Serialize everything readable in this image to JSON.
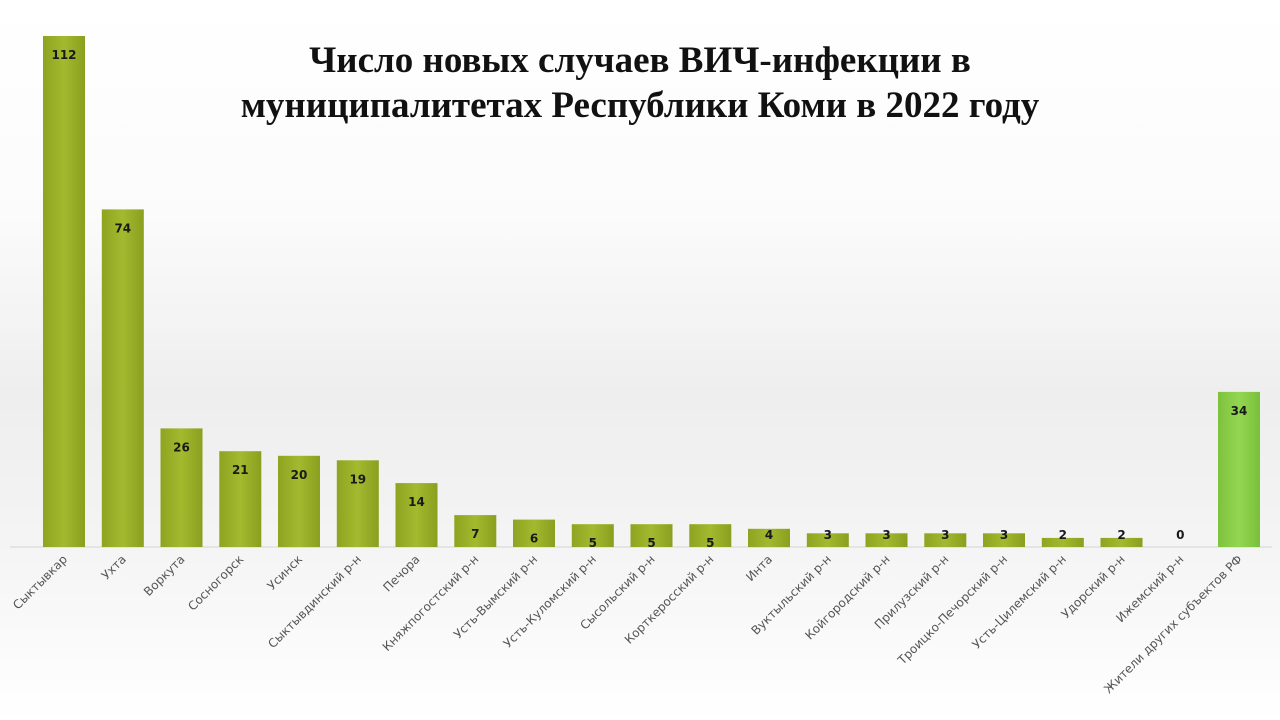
{
  "chart_data": {
    "type": "bar",
    "title": "Число новых случаев ВИЧ-инфекции в муниципалитетах Республики Коми в 2022 году",
    "categories": [
      "Сыктывкар",
      "Ухта",
      "Воркута",
      "Сосногорск",
      "Усинск",
      "Сыктывдинский р-н",
      "Печора",
      "Княжпогостский р-н",
      "Усть-Вымский р-н",
      "Усть-Куломский р-н",
      "Сысольский р-н",
      "Корткеросский р-н",
      "Инта",
      "Вуктыльский р-н",
      "Койгородский р-н",
      "Прилузский р-н",
      "Троицко-Печорский р-н",
      "Усть-Цилемский р-н",
      "Удорский р-н",
      "Ижемский р-н",
      "Жители других субъектов РФ"
    ],
    "values": [
      112,
      74,
      26,
      21,
      20,
      19,
      14,
      7,
      6,
      5,
      5,
      5,
      4,
      3,
      3,
      3,
      3,
      2,
      2,
      0,
      34
    ],
    "xlabel": "",
    "ylabel": "",
    "ylim": [
      0,
      112
    ],
    "grid": false,
    "legend": "none",
    "colors": {
      "bar": "#9ab228",
      "bar_highlight": "#8ccf4a"
    }
  }
}
